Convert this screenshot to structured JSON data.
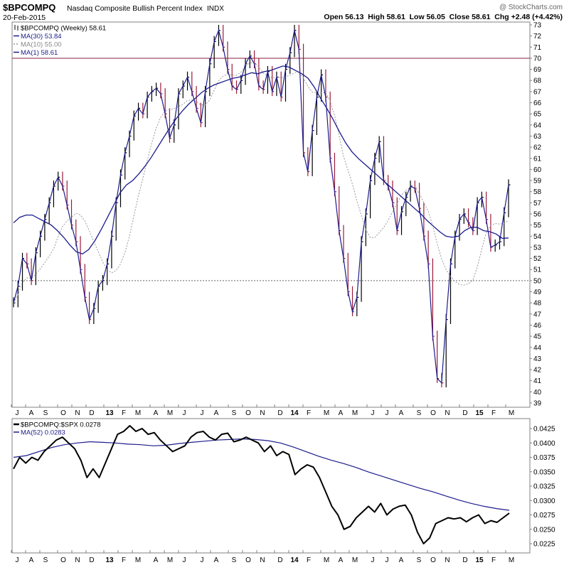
{
  "header": {
    "symbol": "$BPCOMPQ",
    "name": "Nasdaq Composite Bullish Percent Index",
    "exchange": "INDX",
    "date": "20-Feb-2015",
    "watermark": "@ StockCharts.com",
    "ohlc": "Open 56.13  High 58.61  Low 56.05  Close 58.61  Chg +2.48 (+4.42%)"
  },
  "legend_main": [
    {
      "label": "$BPCOMPQ (Weekly) 58.61",
      "style": "bars",
      "color": "#000000"
    },
    {
      "label": "MA(30) 53.84",
      "style": "solid",
      "color": "#1c1c8c"
    },
    {
      "label": "MA(10) 55.00",
      "style": "dotted",
      "color": "#999999"
    },
    {
      "label": "MA(1) 58.61",
      "style": "solid",
      "color": "#1c1c8c"
    }
  ],
  "legend_lower": [
    {
      "label": "$BPCOMPQ:$SPX 0.0278",
      "color": "#000000"
    },
    {
      "label": "MA(52) 0.0283",
      "color": "#1c1c8c"
    }
  ],
  "colors": {
    "up": "#000000",
    "down": "#9b1b3a",
    "ma": "#1c1c8c",
    "ma10": "#999999",
    "ref70": "#8b1e3f"
  },
  "x_labels": [
    {
      "t": 1,
      "label": "J"
    },
    {
      "t": 5,
      "label": "A"
    },
    {
      "t": 9,
      "label": "S"
    },
    {
      "t": 14,
      "label": "O"
    },
    {
      "t": 18,
      "label": "N"
    },
    {
      "t": 22,
      "label": "D"
    },
    {
      "t": 27,
      "label": "13"
    },
    {
      "t": 31,
      "label": "F"
    },
    {
      "t": 35,
      "label": "M"
    },
    {
      "t": 40,
      "label": "A"
    },
    {
      "t": 44,
      "label": "M"
    },
    {
      "t": 48,
      "label": "J"
    },
    {
      "t": 53,
      "label": "J"
    },
    {
      "t": 57,
      "label": "A"
    },
    {
      "t": 62,
      "label": "S"
    },
    {
      "t": 66,
      "label": "O"
    },
    {
      "t": 70,
      "label": "N"
    },
    {
      "t": 75,
      "label": "D"
    },
    {
      "t": 79,
      "label": "14"
    },
    {
      "t": 83,
      "label": "F"
    },
    {
      "t": 88,
      "label": "M"
    },
    {
      "t": 92,
      "label": "A"
    },
    {
      "t": 96,
      "label": "M"
    },
    {
      "t": 101,
      "label": "J"
    },
    {
      "t": 105,
      "label": "J"
    },
    {
      "t": 109,
      "label": "A"
    },
    {
      "t": 114,
      "label": "S"
    },
    {
      "t": 118,
      "label": "O"
    },
    {
      "t": 122,
      "label": "N"
    },
    {
      "t": 127,
      "label": "D"
    },
    {
      "t": 131,
      "label": "15"
    },
    {
      "t": 135,
      "label": "F"
    },
    {
      "t": 140,
      "label": "M"
    }
  ],
  "chart_data": [
    {
      "type": "line",
      "title": "$BPCOMPQ Nasdaq Composite Bullish Percent Index",
      "x_axis": "weekly, mid-2012 to Feb 2015",
      "ylim": [
        39,
        73
      ],
      "y_ticks": [
        39,
        40,
        41,
        42,
        43,
        44,
        45,
        46,
        47,
        48,
        49,
        50,
        51,
        52,
        53,
        54,
        55,
        56,
        57,
        58,
        59,
        60,
        61,
        62,
        63,
        64,
        65,
        66,
        67,
        68,
        69,
        70,
        71,
        72,
        73
      ],
      "reference_lines": [
        {
          "value": 70,
          "style": "solid"
        },
        {
          "value": 50,
          "style": "dotted"
        }
      ],
      "series": [
        {
          "name": "$BPCOMPQ (Weekly)",
          "values": [
            48,
            49.5,
            52,
            51.5,
            50,
            52.5,
            54,
            55.5,
            57,
            58.5,
            59.3,
            58.5,
            56.8,
            55,
            53.5,
            51,
            48.5,
            46.5,
            47.5,
            49.5,
            50,
            51.5,
            54,
            57,
            59.5,
            61.5,
            63,
            64.8,
            65.5,
            65,
            66.5,
            67,
            67.3,
            66.8,
            65,
            62.8,
            64,
            66.8,
            67.5,
            68.3,
            67,
            65.5,
            64.2,
            67,
            69.5,
            71.5,
            72.5,
            71,
            69,
            67.5,
            67.2,
            68,
            69.5,
            70.2,
            69.5,
            67.5,
            67.2,
            68.8,
            67,
            68.3,
            66.5,
            69,
            70.5,
            72.5,
            70.8,
            61.5,
            59.8,
            63.5,
            66.5,
            68.5,
            66.5,
            61,
            58,
            54.5,
            52,
            49,
            47.2,
            48.5,
            53.5,
            56,
            59,
            61,
            62.5,
            59,
            58.5,
            57,
            54.5,
            56.2,
            57.5,
            58.5,
            58.3,
            56.5,
            54,
            51.5,
            45,
            41.2,
            40.8,
            46.5,
            51.5,
            54,
            55.5,
            56,
            55.2,
            54.5,
            57,
            57.5,
            55.5,
            53,
            53.2,
            53.5,
            56.1,
            58.61
          ],
          "color": "#000000"
        },
        {
          "name": "MA(30)",
          "values": [
            55.2,
            55.7,
            55.9,
            55.9,
            55.6,
            55.3,
            55,
            54.5,
            53.9,
            53.2,
            52.6,
            52.4,
            52.8,
            53.6,
            54.6,
            55.7,
            56.8,
            57.9,
            58.6,
            59,
            59.6,
            60.3,
            61.1,
            62,
            62.9,
            63.8,
            64.6,
            65.3,
            65.9,
            66.4,
            66.9,
            67.3,
            67.6,
            67.8,
            68,
            68.2,
            68.3,
            68.5,
            68.7,
            68.6,
            68.8,
            68.9,
            69.1,
            69.3,
            69.2,
            68.9,
            68.6,
            68.2,
            67.4,
            66.4,
            65.5,
            64.5,
            63.4,
            62.4,
            61.6,
            61,
            60.5,
            60,
            59.5,
            59,
            58.5,
            58,
            57.5,
            57,
            56.5,
            56,
            55.4,
            54.9,
            54.4,
            54,
            53.9,
            54,
            54.5,
            54.8,
            54.8,
            54.5,
            54.4,
            54.2,
            53.8,
            53.84
          ],
          "start": 0,
          "color": "#1c1c8c"
        }
      ]
    },
    {
      "type": "line",
      "title": "$BPCOMPQ:$SPX ratio",
      "ylim": [
        0.0215,
        0.0435
      ],
      "y_ticks": [
        0.0225,
        0.025,
        0.0275,
        0.03,
        0.0325,
        0.035,
        0.0375,
        0.04,
        0.0425
      ],
      "series": [
        {
          "name": "$BPCOMPQ:$SPX",
          "values": [
            0.0355,
            0.0375,
            0.0365,
            0.0375,
            0.037,
            0.0385,
            0.0395,
            0.0405,
            0.041,
            0.04,
            0.039,
            0.037,
            0.034,
            0.0355,
            0.034,
            0.0365,
            0.039,
            0.0415,
            0.042,
            0.043,
            0.042,
            0.0425,
            0.0415,
            0.0418,
            0.0405,
            0.0395,
            0.0385,
            0.039,
            0.0395,
            0.041,
            0.0418,
            0.042,
            0.041,
            0.0405,
            0.0415,
            0.0417,
            0.0402,
            0.0405,
            0.041,
            0.0405,
            0.04,
            0.0385,
            0.0395,
            0.0378,
            0.0385,
            0.038,
            0.0345,
            0.0355,
            0.0362,
            0.0358,
            0.034,
            0.0315,
            0.029,
            0.0275,
            0.025,
            0.0255,
            0.027,
            0.028,
            0.029,
            0.028,
            0.0295,
            0.0275,
            0.0285,
            0.029,
            0.0292,
            0.0275,
            0.0245,
            0.0225,
            0.0235,
            0.026,
            0.0265,
            0.027,
            0.0268,
            0.027,
            0.0263,
            0.027,
            0.0275,
            0.026,
            0.0265,
            0.0262,
            0.027,
            0.0278
          ],
          "color": "#000000"
        },
        {
          "name": "MA(52)",
          "values": [
            0.0375,
            0.0378,
            0.0385,
            0.0392,
            0.0397,
            0.04,
            0.0402,
            0.0401,
            0.04,
            0.0398,
            0.0397,
            0.0395,
            0.0396,
            0.0399,
            0.0401,
            0.0403,
            0.0405,
            0.0406,
            0.0407,
            0.0406,
            0.0404,
            0.04,
            0.0393,
            0.0385,
            0.0377,
            0.037,
            0.0364,
            0.0357,
            0.0349,
            0.0342,
            0.0335,
            0.0328,
            0.0321,
            0.0315,
            0.0308,
            0.0301,
            0.0295,
            0.029,
            0.0286,
            0.0283
          ],
          "color": "#1c1c8c"
        }
      ]
    }
  ]
}
